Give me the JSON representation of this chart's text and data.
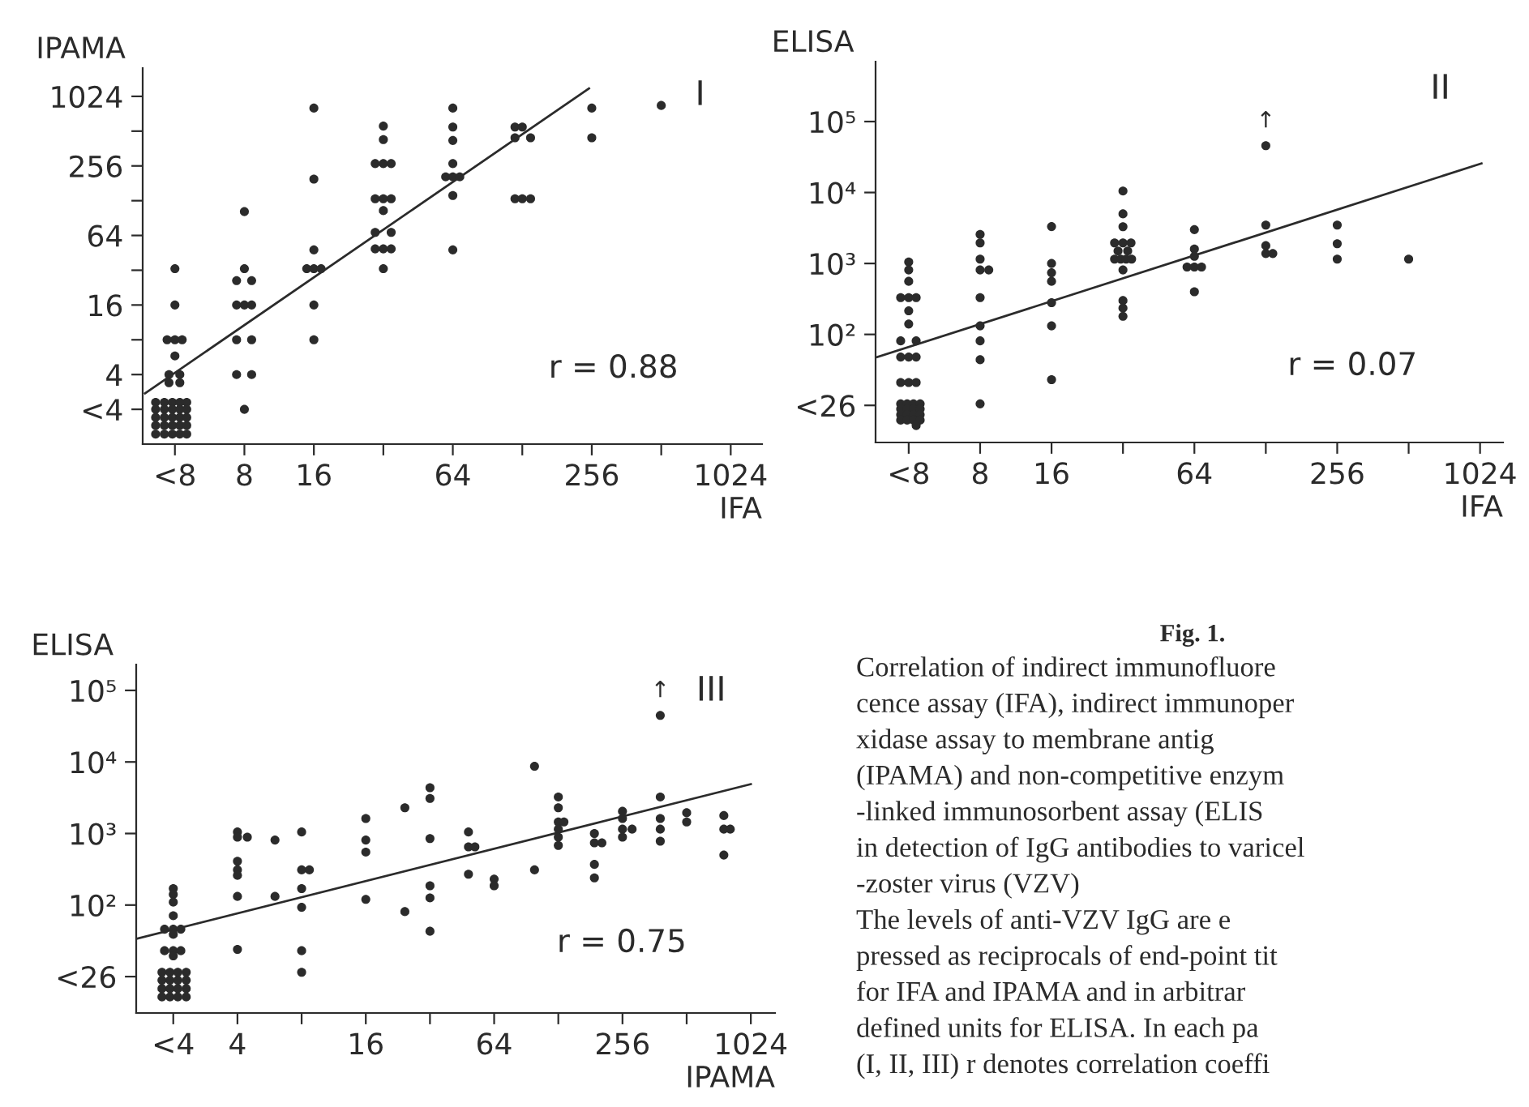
{
  "chart_data": [
    {
      "type": "scatter",
      "ylabel": "IPAMA",
      "xlabel": "IFA",
      "log": "xy",
      "marker": "circle",
      "xlim": [
        2.9,
        1400
      ],
      "ylim": [
        1,
        1800
      ],
      "xticks": [
        {
          "value": 4,
          "label": "<8"
        },
        8,
        16,
        {
          "value": 32,
          "label": null
        },
        64,
        {
          "value": 128,
          "label": null
        },
        256,
        {
          "value": 512,
          "label": null
        },
        1024
      ],
      "yticks": [
        {
          "value": 2,
          "label": "<4"
        },
        4,
        {
          "value": 8,
          "label": null
        },
        16,
        {
          "value": 32,
          "label": null
        },
        64,
        {
          "value": 128,
          "label": null
        },
        256,
        {
          "value": 512,
          "label": null
        },
        1024
      ],
      "annotations": [
        "I",
        "r = 0.88"
      ],
      "series": [
        {
          "type": "scatter",
          "color": "#2b2b2b",
          "x": [
            4,
            4,
            4,
            3.7,
            4.3,
            4,
            3.77,
            4.2,
            3.77,
            4.2,
            3.3,
            3.6,
            3.9,
            4.2,
            4.5,
            3.3,
            3.6,
            3.9,
            4.2,
            4.5,
            3.3,
            3.6,
            3.9,
            4.2,
            4.5,
            3.3,
            3.6,
            3.9,
            4.2,
            4.5,
            3.3,
            3.6,
            3.9,
            4.2,
            4.5,
            8,
            8,
            7.4,
            8.6,
            7.4,
            8,
            8.6,
            7.4,
            8.6,
            7.4,
            8.6,
            8,
            16,
            16,
            16,
            14.9,
            16,
            17.2,
            16,
            16,
            32,
            32,
            29.5,
            32,
            34.6,
            29.5,
            32,
            34.6,
            32,
            29.5,
            34.6,
            29.5,
            32,
            34.6,
            32,
            64,
            64,
            64,
            64,
            59.6,
            64,
            68.6,
            64,
            64,
            119,
            128,
            119,
            139,
            119,
            128,
            139,
            256,
            256,
            512
          ],
          "values": [
            33,
            16,
            8,
            8,
            8,
            5.8,
            4,
            4,
            3.4,
            3.4,
            2.3,
            2.3,
            2.3,
            2.3,
            2.3,
            2.0,
            2.0,
            2.0,
            2.0,
            2.0,
            1.7,
            1.7,
            1.7,
            1.7,
            1.7,
            1.45,
            1.45,
            1.45,
            1.45,
            1.45,
            1.22,
            1.22,
            1.22,
            1.22,
            1.22,
            103,
            33,
            26,
            26,
            16,
            16,
            16,
            8,
            8,
            4,
            4,
            2,
            810,
            197,
            48,
            33,
            33,
            33,
            16,
            8,
            566,
            433,
            268,
            268,
            268,
            133,
            133,
            133,
            105,
            68,
            68,
            49,
            49,
            49,
            33,
            810,
            556,
            425,
            268,
            206,
            206,
            206,
            142,
            48,
            556,
            556,
            449,
            449,
            133,
            133,
            133,
            810,
            449,
            854
          ]
        },
        {
          "type": "line",
          "marker": "none",
          "color": "#2b2b2b",
          "x": [
            2.97,
            249
          ],
          "values": [
            2.75,
            1200
          ]
        }
      ]
    },
    {
      "type": "scatter",
      "ylabel": "ELISA",
      "xlabel": "IFA",
      "log": "xy",
      "marker": "circle",
      "xlim": [
        2.9,
        1280
      ],
      "ylim": [
        3,
        700000
      ],
      "xticks": [
        {
          "value": 4,
          "label": "<8"
        },
        8,
        16,
        {
          "value": 32,
          "label": null
        },
        64,
        {
          "value": 128,
          "label": null
        },
        256,
        {
          "value": 512,
          "label": null
        },
        1024
      ],
      "yticks": [
        {
          "value": 10,
          "label": "<26"
        },
        {
          "value": 100,
          "label": "10²"
        },
        {
          "value": 1000,
          "label": "10³"
        },
        {
          "value": 10000,
          "label": "10⁴"
        },
        {
          "value": 100000,
          "label": "10⁵"
        }
      ],
      "annotations": [
        "II",
        "r = 0.07",
        {
          "text": "↑",
          "x": 128,
          "y": 45700
        }
      ],
      "series": [
        {
          "type": "scatter",
          "color": "#2b2b2b",
          "x": [
            4,
            4,
            4,
            3.7,
            4,
            4.3,
            4,
            4,
            3.7,
            4.3,
            3.7,
            4,
            4.3,
            3.7,
            4,
            4.3,
            3.7,
            3.94,
            4.19,
            4.47,
            3.7,
            3.94,
            4.19,
            4.47,
            3.7,
            3.94,
            4.19,
            4.47,
            3.7,
            3.94,
            4.19,
            4.47,
            4.3,
            8,
            8,
            8,
            8,
            8.7,
            8,
            8,
            8,
            8,
            8,
            16,
            16,
            16,
            16,
            16,
            16,
            16,
            32,
            32,
            32,
            29.5,
            32,
            34.6,
            30.5,
            33.5,
            29.5,
            31.3,
            33,
            34.8,
            32,
            32,
            32,
            32,
            64,
            64,
            64,
            59.6,
            64,
            68.6,
            64,
            128,
            128,
            128,
            137,
            128,
            256,
            256,
            256,
            512
          ],
          "values": [
            1050,
            810,
            560,
            330,
            330,
            330,
            215,
            140,
            81,
            81,
            48,
            48,
            48,
            21,
            21,
            21,
            10.5,
            10.5,
            10.5,
            10.5,
            8.9,
            8.9,
            8.9,
            8.9,
            7.4,
            7.4,
            7.4,
            7.4,
            6.2,
            6.2,
            6.2,
            6.2,
            5.2,
            2570,
            1950,
            1150,
            810,
            810,
            330,
            132,
            81,
            44,
            10.5,
            3310,
            1000,
            740,
            560,
            280,
            132,
            23,
            10500,
            5000,
            3300,
            1950,
            1950,
            1950,
            1500,
            1500,
            1150,
            1150,
            1150,
            1150,
            810,
            300,
            235,
            180,
            3000,
            1600,
            1260,
            890,
            890,
            890,
            400,
            3470,
            1780,
            1380,
            1380,
            45700,
            3470,
            1900,
            1150,
            1150
          ]
        },
        {
          "type": "line",
          "marker": "none",
          "color": "#2b2b2b",
          "x": [
            2.95,
            1038
          ],
          "values": [
            48,
            25700
          ]
        }
      ]
    },
    {
      "type": "scatter",
      "ylabel": "ELISA",
      "xlabel": "IPAMA",
      "log": "xy",
      "marker": "circle",
      "xlim": [
        1.34,
        1330
      ],
      "ylim": [
        3.1,
        230000
      ],
      "xticks": [
        {
          "value": 2,
          "label": "<4"
        },
        4,
        {
          "value": 8,
          "label": null
        },
        16,
        {
          "value": 32,
          "label": null
        },
        64,
        {
          "value": 128,
          "label": null
        },
        256,
        {
          "value": 512,
          "label": null
        },
        1024
      ],
      "yticks": [
        {
          "value": 10,
          "label": "<26"
        },
        {
          "value": 100,
          "label": "10²"
        },
        {
          "value": 1000,
          "label": "10³"
        },
        {
          "value": 10000,
          "label": "10⁴"
        },
        {
          "value": 100000,
          "label": "10⁵"
        }
      ],
      "annotations": [
        "III",
        "r = 0.75",
        {
          "text": "↑",
          "x": 385,
          "y": 44700
        }
      ],
      "series": [
        {
          "type": "scatter",
          "color": "#2b2b2b",
          "x": [
            2,
            2,
            2,
            2,
            1.82,
            2,
            2.17,
            2,
            1.82,
            2,
            2.17,
            2,
            1.77,
            1.93,
            2.1,
            2.3,
            1.77,
            1.93,
            2.1,
            2.3,
            1.77,
            1.93,
            2.1,
            2.3,
            1.77,
            1.93,
            2.1,
            2.3,
            4,
            4,
            4.45,
            4,
            4,
            4,
            4,
            4,
            6,
            6,
            8,
            8,
            8.7,
            8,
            8,
            8,
            8,
            16,
            16,
            16,
            16,
            24.4,
            24.4,
            32,
            32,
            32,
            32,
            32,
            32,
            48.5,
            48.5,
            52,
            48.5,
            64,
            64,
            99,
            99,
            128,
            128,
            128,
            136,
            128,
            128,
            128,
            189,
            189,
            205,
            189,
            189,
            256,
            256,
            256,
            284,
            256,
            385,
            385,
            385,
            385,
            385,
            512,
            512,
            765,
            765,
            820,
            765
          ],
          "values": [
            170,
            141,
            110,
            71,
            46,
            46,
            46,
            39,
            23,
            23,
            23,
            19.5,
            11.5,
            11.5,
            11.5,
            11.5,
            8.9,
            8.9,
            8.9,
            8.9,
            6.8,
            6.8,
            6.8,
            6.8,
            5.2,
            5.2,
            5.2,
            5.2,
            1050,
            890,
            890,
            410,
            310,
            260,
            132,
            24,
            810,
            132,
            1050,
            310,
            310,
            170,
            93,
            23,
            11.5,
            1620,
            810,
            550,
            120,
            2290,
            81,
            4370,
            3090,
            850,
            186,
            126,
            43,
            1050,
            650,
            650,
            270,
            230,
            186,
            8700,
            310,
            3240,
            2290,
            1450,
            1450,
            1150,
            890,
            680,
            1000,
            740,
            740,
            370,
            240,
            2040,
            1620,
            1150,
            1150,
            890,
            3240,
            1620,
            1150,
            780,
            44700,
            1950,
            1450,
            1780,
            1150,
            1150,
            500
          ]
        },
        {
          "type": "line",
          "marker": "none",
          "color": "#2b2b2b",
          "x": [
            1.36,
            1024
          ],
          "values": [
            34,
            4900
          ]
        }
      ]
    },
    {
      "type": "other",
      "title": "Fig. 1.",
      "annotations": [
        "Correlation of indirect immunofluore",
        "cence assay (IFA), indirect immunoper",
        "xidase assay to membrane antig",
        "(IPAMA) and non-competitive enzym",
        "-linked immunosorbent assay (ELIS",
        "in detection of IgG antibodies to varicel",
        "-zoster virus (VZV)",
        "The levels of anti-VZV IgG are e",
        "pressed as reciprocals of end-point tit",
        "for IFA and IPAMA and in arbitrar",
        "defined units for ELISA. In each pa",
        "(I, II, III) r denotes correlation coeffi"
      ]
    }
  ]
}
